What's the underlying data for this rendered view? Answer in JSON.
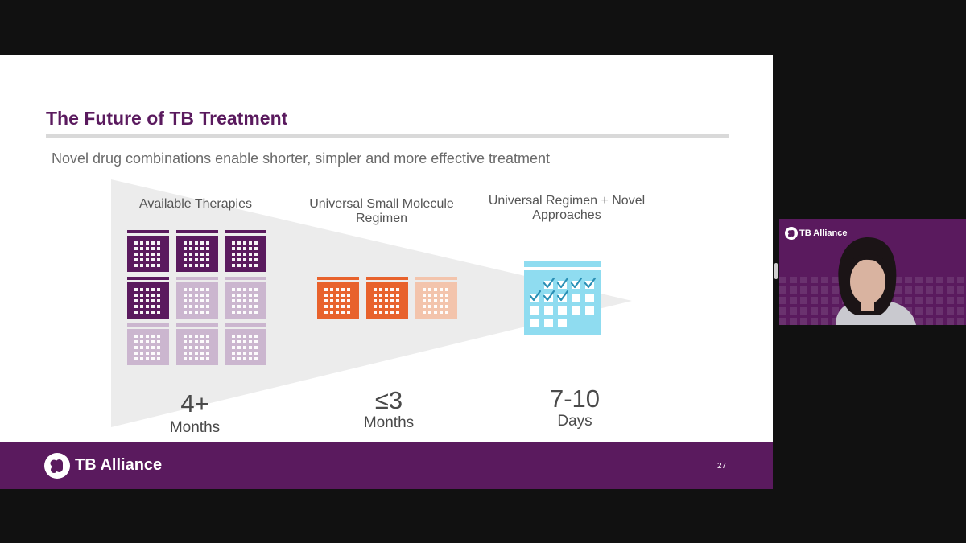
{
  "slide": {
    "title": "The Future of TB Treatment",
    "subtitle": "Novel drug combinations enable shorter, simpler and more effective treatment",
    "columns": [
      {
        "label": "Available Therapies",
        "value": "4+",
        "unit": "Months"
      },
      {
        "label": "Universal Small Molecule Regimen",
        "value": "≤3",
        "unit": "Months"
      },
      {
        "label": "Universal Regimen + Novel Approaches",
        "value": "7-10",
        "unit": "Days"
      }
    ],
    "footer": {
      "brand": "TB Alliance",
      "page_number": "27"
    }
  },
  "webcam": {
    "brand": "TB Alliance"
  },
  "colors": {
    "purple": "#5a1a5e",
    "light_purple": "#cbb6cf",
    "orange": "#e8622c",
    "peach": "#f3c4ac",
    "light_blue": "#8fdcf0"
  },
  "icons": {
    "calendar": "calendar-icon",
    "logo": "tb-alliance-logo-icon",
    "check": "check-icon"
  }
}
